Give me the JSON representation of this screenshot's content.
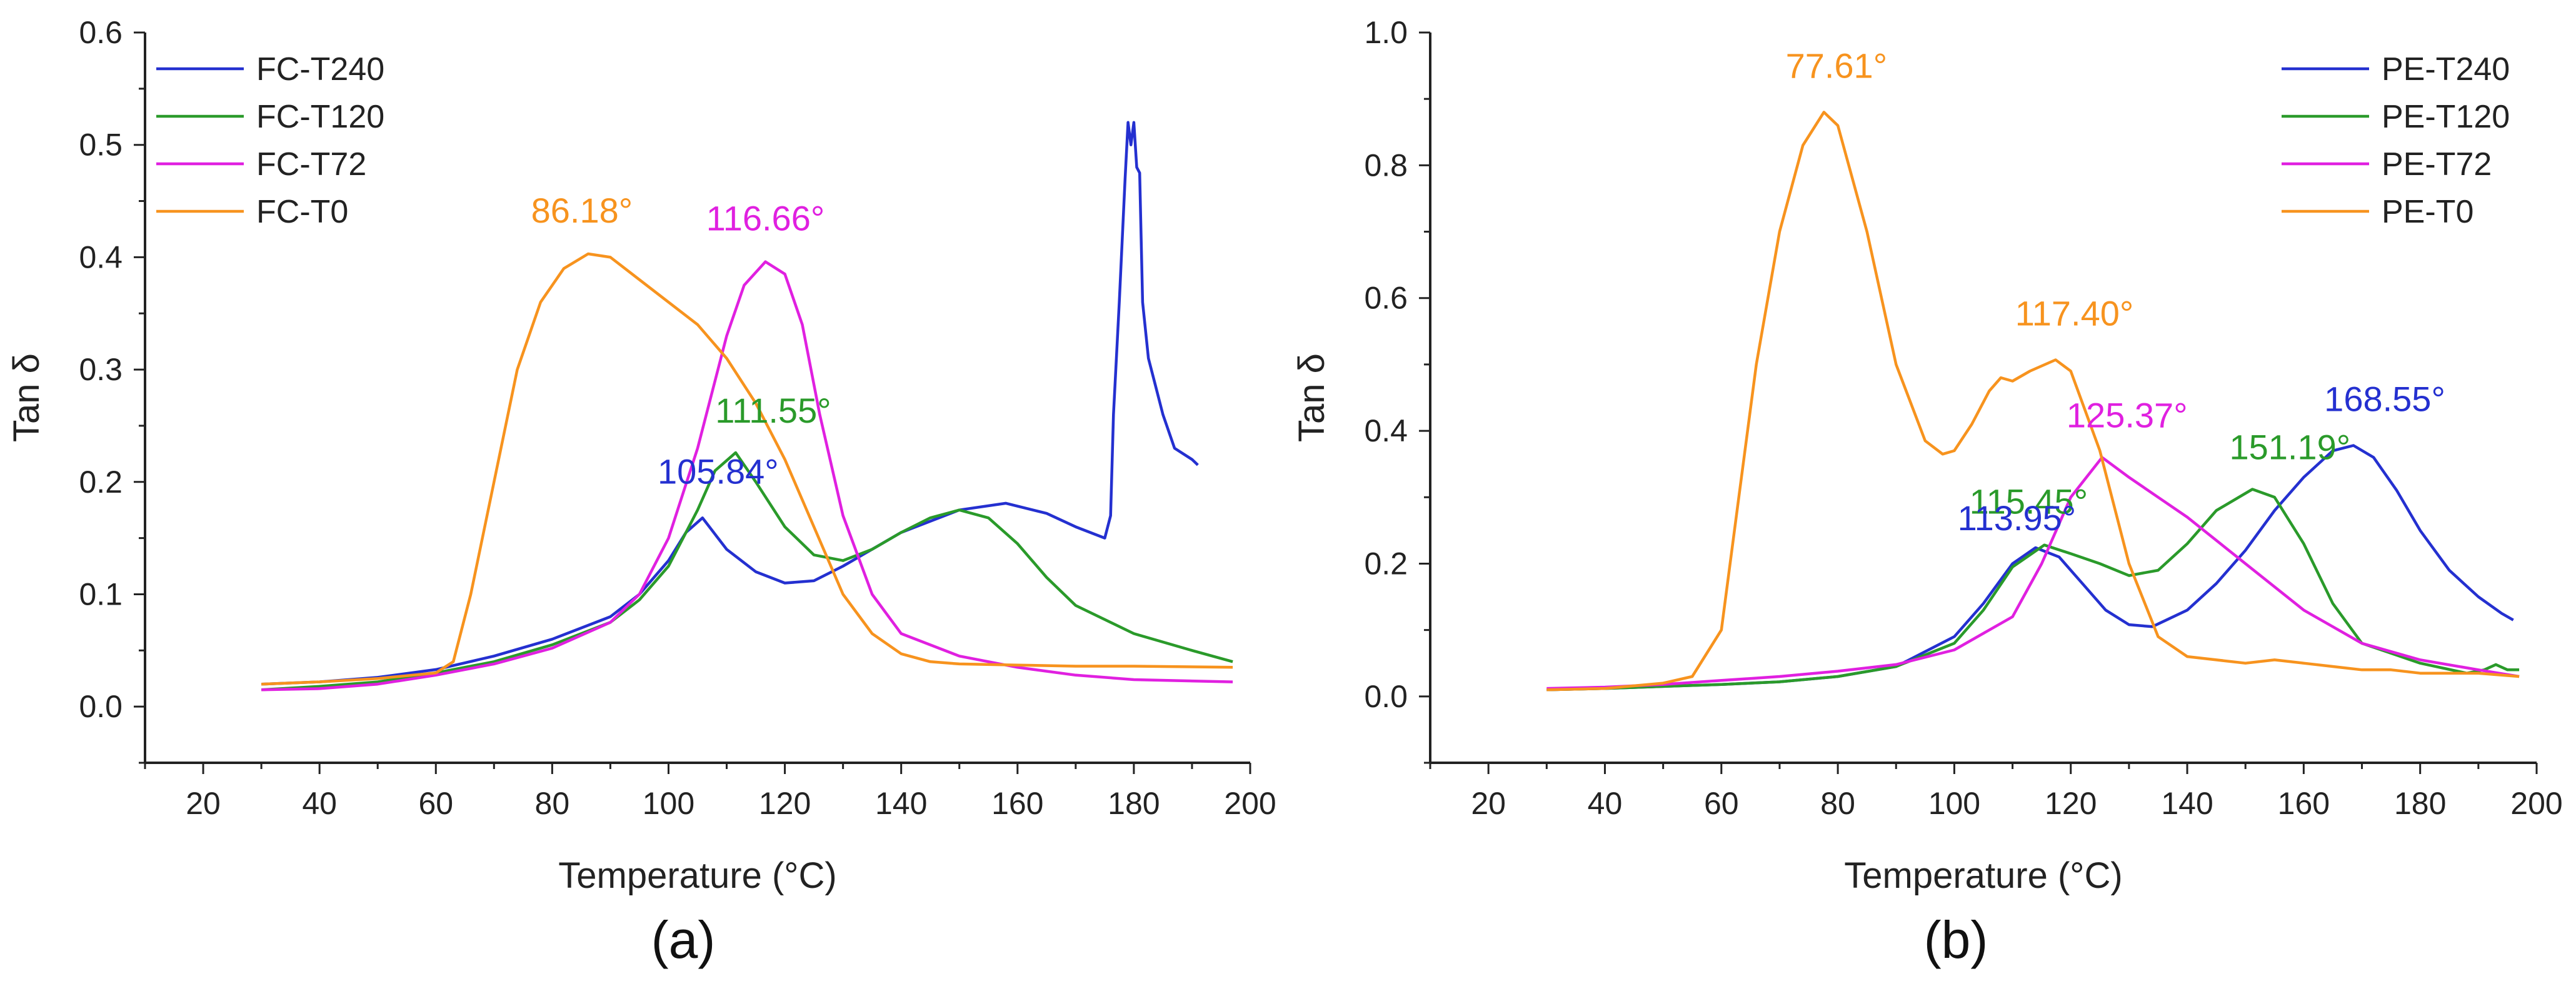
{
  "chart_data": [
    {
      "id": "a",
      "type": "line",
      "caption": "(a)",
      "xlabel": "Temperature (°C)",
      "ylabel": "Tan δ",
      "xlim": [
        10,
        200
      ],
      "ylim": [
        -0.05,
        0.6
      ],
      "xticks": [
        20,
        40,
        60,
        80,
        100,
        120,
        140,
        160,
        180,
        200
      ],
      "yticks": [
        0.0,
        0.1,
        0.2,
        0.3,
        0.4,
        0.5,
        0.6
      ],
      "ytick_labels": [
        "0.0",
        "0.1",
        "0.2",
        "0.3",
        "0.4",
        "0.5",
        "0.6"
      ],
      "legend_position": "top-left",
      "series": [
        {
          "name": "FC-T240",
          "color": "#2430d0",
          "points": [
            [
              30,
              0.02
            ],
            [
              40,
              0.022
            ],
            [
              50,
              0.026
            ],
            [
              60,
              0.033
            ],
            [
              70,
              0.045
            ],
            [
              80,
              0.06
            ],
            [
              90,
              0.08
            ],
            [
              95,
              0.1
            ],
            [
              100,
              0.13
            ],
            [
              103,
              0.155
            ],
            [
              105.84,
              0.168
            ],
            [
              110,
              0.14
            ],
            [
              115,
              0.12
            ],
            [
              120,
              0.11
            ],
            [
              125,
              0.112
            ],
            [
              130,
              0.125
            ],
            [
              140,
              0.155
            ],
            [
              150,
              0.175
            ],
            [
              158,
              0.181
            ],
            [
              165,
              0.172
            ],
            [
              170,
              0.16
            ],
            [
              175,
              0.15
            ],
            [
              176,
              0.17
            ],
            [
              176.5,
              0.26
            ],
            [
              177.5,
              0.36
            ],
            [
              178.5,
              0.47
            ],
            [
              179,
              0.52
            ],
            [
              179.5,
              0.5
            ],
            [
              180,
              0.52
            ],
            [
              180.5,
              0.48
            ],
            [
              181,
              0.475
            ],
            [
              181.5,
              0.36
            ],
            [
              182.5,
              0.31
            ],
            [
              183.5,
              0.29
            ],
            [
              185,
              0.26
            ],
            [
              187,
              0.23
            ],
            [
              190,
              0.22
            ],
            [
              191,
              0.215
            ]
          ]
        },
        {
          "name": "FC-T120",
          "color": "#2a9a2a",
          "points": [
            [
              30,
              0.015
            ],
            [
              40,
              0.018
            ],
            [
              50,
              0.022
            ],
            [
              60,
              0.03
            ],
            [
              70,
              0.04
            ],
            [
              80,
              0.055
            ],
            [
              90,
              0.075
            ],
            [
              95,
              0.095
            ],
            [
              100,
              0.125
            ],
            [
              105,
              0.175
            ],
            [
              108,
              0.21
            ],
            [
              111.55,
              0.226
            ],
            [
              115,
              0.2
            ],
            [
              120,
              0.16
            ],
            [
              125,
              0.135
            ],
            [
              130,
              0.13
            ],
            [
              135,
              0.14
            ],
            [
              140,
              0.155
            ],
            [
              145,
              0.168
            ],
            [
              150,
              0.175
            ],
            [
              155,
              0.168
            ],
            [
              160,
              0.145
            ],
            [
              165,
              0.115
            ],
            [
              170,
              0.09
            ],
            [
              180,
              0.065
            ],
            [
              190,
              0.05
            ],
            [
              197,
              0.04
            ]
          ]
        },
        {
          "name": "FC-T72",
          "color": "#e020e0",
          "points": [
            [
              30,
              0.015
            ],
            [
              40,
              0.016
            ],
            [
              50,
              0.02
            ],
            [
              60,
              0.028
            ],
            [
              70,
              0.038
            ],
            [
              80,
              0.052
            ],
            [
              90,
              0.075
            ],
            [
              95,
              0.1
            ],
            [
              100,
              0.15
            ],
            [
              105,
              0.23
            ],
            [
              110,
              0.33
            ],
            [
              113,
              0.375
            ],
            [
              116.66,
              0.396
            ],
            [
              120,
              0.385
            ],
            [
              123,
              0.34
            ],
            [
              126,
              0.26
            ],
            [
              130,
              0.17
            ],
            [
              135,
              0.1
            ],
            [
              140,
              0.065
            ],
            [
              150,
              0.045
            ],
            [
              160,
              0.035
            ],
            [
              170,
              0.028
            ],
            [
              180,
              0.024
            ],
            [
              197,
              0.022
            ]
          ]
        },
        {
          "name": "FC-T0",
          "color": "#f7931e",
          "points": [
            [
              30,
              0.02
            ],
            [
              40,
              0.022
            ],
            [
              50,
              0.025
            ],
            [
              60,
              0.03
            ],
            [
              63,
              0.04
            ],
            [
              66,
              0.1
            ],
            [
              70,
              0.2
            ],
            [
              74,
              0.3
            ],
            [
              78,
              0.36
            ],
            [
              82,
              0.39
            ],
            [
              86.18,
              0.403
            ],
            [
              90,
              0.4
            ],
            [
              95,
              0.38
            ],
            [
              100,
              0.36
            ],
            [
              105,
              0.34
            ],
            [
              110,
              0.31
            ],
            [
              115,
              0.27
            ],
            [
              120,
              0.22
            ],
            [
              125,
              0.16
            ],
            [
              130,
              0.1
            ],
            [
              135,
              0.065
            ],
            [
              140,
              0.047
            ],
            [
              145,
              0.04
            ],
            [
              150,
              0.038
            ],
            [
              160,
              0.037
            ],
            [
              170,
              0.036
            ],
            [
              180,
              0.036
            ],
            [
              197,
              0.035
            ]
          ]
        }
      ],
      "annotations": [
        {
          "text": "86.18°",
          "x": 86.18,
          "y": 0.403,
          "color": "#f7931e"
        },
        {
          "text": "116.66°",
          "x": 116.66,
          "y": 0.396,
          "color": "#e020e0"
        },
        {
          "text": "111.55°",
          "x": 111.55,
          "y": 0.226,
          "color": "#2a9a2a"
        },
        {
          "text": "105.84°",
          "x": 105.84,
          "y": 0.168,
          "color": "#2430d0"
        }
      ]
    },
    {
      "id": "b",
      "type": "line",
      "caption": "(b)",
      "xlabel": "Temperature (°C)",
      "ylabel": "Tan δ",
      "xlim": [
        10,
        200
      ],
      "ylim": [
        -0.1,
        1.0
      ],
      "xticks": [
        20,
        40,
        60,
        80,
        100,
        120,
        140,
        160,
        180,
        200
      ],
      "yticks": [
        0.0,
        0.2,
        0.4,
        0.6,
        0.8,
        1.0
      ],
      "ytick_labels": [
        "0.0",
        "0.2",
        "0.4",
        "0.6",
        "0.8",
        "1.0"
      ],
      "legend_position": "top-right",
      "series": [
        {
          "name": "PE-T240",
          "color": "#2430d0",
          "points": [
            [
              30,
              0.01
            ],
            [
              40,
              0.012
            ],
            [
              50,
              0.015
            ],
            [
              60,
              0.018
            ],
            [
              70,
              0.022
            ],
            [
              80,
              0.03
            ],
            [
              90,
              0.045
            ],
            [
              100,
              0.09
            ],
            [
              105,
              0.14
            ],
            [
              110,
              0.2
            ],
            [
              113.95,
              0.224
            ],
            [
              118,
              0.21
            ],
            [
              122,
              0.17
            ],
            [
              126,
              0.13
            ],
            [
              130,
              0.108
            ],
            [
              134,
              0.105
            ],
            [
              140,
              0.13
            ],
            [
              145,
              0.17
            ],
            [
              150,
              0.22
            ],
            [
              155,
              0.28
            ],
            [
              160,
              0.33
            ],
            [
              165,
              0.37
            ],
            [
              168.55,
              0.378
            ],
            [
              172,
              0.36
            ],
            [
              176,
              0.31
            ],
            [
              180,
              0.25
            ],
            [
              185,
              0.19
            ],
            [
              190,
              0.15
            ],
            [
              194,
              0.125
            ],
            [
              196,
              0.115
            ]
          ]
        },
        {
          "name": "PE-T120",
          "color": "#2a9a2a",
          "points": [
            [
              30,
              0.01
            ],
            [
              40,
              0.012
            ],
            [
              50,
              0.015
            ],
            [
              60,
              0.018
            ],
            [
              70,
              0.022
            ],
            [
              80,
              0.03
            ],
            [
              90,
              0.045
            ],
            [
              100,
              0.08
            ],
            [
              105,
              0.13
            ],
            [
              110,
              0.195
            ],
            [
              115.45,
              0.228
            ],
            [
              120,
              0.215
            ],
            [
              125,
              0.2
            ],
            [
              130,
              0.182
            ],
            [
              135,
              0.19
            ],
            [
              140,
              0.23
            ],
            [
              145,
              0.28
            ],
            [
              151.19,
              0.312
            ],
            [
              155,
              0.3
            ],
            [
              160,
              0.23
            ],
            [
              165,
              0.14
            ],
            [
              170,
              0.08
            ],
            [
              180,
              0.05
            ],
            [
              188,
              0.035
            ],
            [
              191,
              0.04
            ],
            [
              193,
              0.048
            ],
            [
              195,
              0.04
            ],
            [
              197,
              0.04
            ]
          ]
        },
        {
          "name": "PE-T72",
          "color": "#e020e0",
          "points": [
            [
              30,
              0.012
            ],
            [
              40,
              0.014
            ],
            [
              50,
              0.018
            ],
            [
              60,
              0.024
            ],
            [
              70,
              0.03
            ],
            [
              80,
              0.038
            ],
            [
              90,
              0.048
            ],
            [
              100,
              0.07
            ],
            [
              110,
              0.12
            ],
            [
              115,
              0.2
            ],
            [
              120,
              0.3
            ],
            [
              125.37,
              0.36
            ],
            [
              130,
              0.33
            ],
            [
              135,
              0.3
            ],
            [
              140,
              0.27
            ],
            [
              150,
              0.2
            ],
            [
              160,
              0.13
            ],
            [
              170,
              0.08
            ],
            [
              180,
              0.055
            ],
            [
              190,
              0.04
            ],
            [
              197,
              0.03
            ]
          ]
        },
        {
          "name": "PE-T0",
          "color": "#f7931e",
          "points": [
            [
              30,
              0.01
            ],
            [
              40,
              0.012
            ],
            [
              50,
              0.02
            ],
            [
              55,
              0.03
            ],
            [
              60,
              0.1
            ],
            [
              63,
              0.3
            ],
            [
              66,
              0.5
            ],
            [
              70,
              0.7
            ],
            [
              74,
              0.83
            ],
            [
              77.61,
              0.88
            ],
            [
              80,
              0.86
            ],
            [
              85,
              0.7
            ],
            [
              90,
              0.5
            ],
            [
              95,
              0.385
            ],
            [
              98,
              0.365
            ],
            [
              100,
              0.37
            ],
            [
              103,
              0.41
            ],
            [
              106,
              0.46
            ],
            [
              108,
              0.48
            ],
            [
              110,
              0.475
            ],
            [
              113,
              0.49
            ],
            [
              117.4,
              0.507
            ],
            [
              120,
              0.49
            ],
            [
              125,
              0.37
            ],
            [
              130,
              0.2
            ],
            [
              135,
              0.09
            ],
            [
              140,
              0.06
            ],
            [
              145,
              0.055
            ],
            [
              150,
              0.05
            ],
            [
              155,
              0.055
            ],
            [
              160,
              0.05
            ],
            [
              165,
              0.045
            ],
            [
              170,
              0.04
            ],
            [
              175,
              0.04
            ],
            [
              180,
              0.035
            ],
            [
              190,
              0.035
            ],
            [
              197,
              0.03
            ]
          ]
        }
      ],
      "annotations": [
        {
          "text": "77.61°",
          "x": 77.61,
          "y": 0.88,
          "color": "#f7931e"
        },
        {
          "text": "117.40°",
          "x": 117.4,
          "y": 0.507,
          "color": "#f7931e"
        },
        {
          "text": "125.37°",
          "x": 125.37,
          "y": 0.36,
          "color": "#e020e0"
        },
        {
          "text": "151.19°",
          "x": 151.19,
          "y": 0.312,
          "color": "#2a9a2a"
        },
        {
          "text": "168.55°",
          "x": 168.55,
          "y": 0.378,
          "color": "#2430d0"
        },
        {
          "text": "115.45°",
          "x": 115.45,
          "y": 0.228,
          "color": "#2a9a2a"
        },
        {
          "text": "113.95°",
          "x": 113.95,
          "y": 0.224,
          "color": "#2430d0"
        }
      ]
    }
  ]
}
